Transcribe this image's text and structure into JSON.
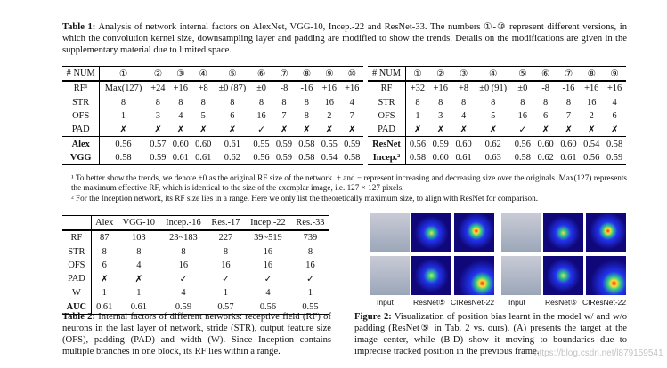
{
  "table1": {
    "caption_label": "Table 1:",
    "caption": "Analysis of network internal factors on AlexNet, VGG-10, Incep.-22 and ResNet-33. The numbers ①-⑩ represent different versions, in which the convolution kernel size, downsampling layer and padding are modified to show the trends. Details on the modifications are given in the supplementary material due to limited space.",
    "left": {
      "header": [
        "# NUM",
        "①",
        "②",
        "③",
        "④",
        "⑤",
        "⑥",
        "⑦",
        "⑧",
        "⑨",
        "⑩"
      ],
      "rows": [
        [
          "RF¹",
          "Max(127)",
          "+24",
          "+16",
          "+8",
          "±0 (87)",
          "±0",
          "-8",
          "-16",
          "+16",
          "+16"
        ],
        [
          "STR",
          "8",
          "8",
          "8",
          "8",
          "8",
          "8",
          "8",
          "8",
          "16",
          "4"
        ],
        [
          "OFS",
          "1",
          "3",
          "4",
          "5",
          "6",
          "16",
          "7",
          "8",
          "2",
          "7"
        ],
        [
          "PAD",
          "✗",
          "✗",
          "✗",
          "✗",
          "✗",
          "✓",
          "✗",
          "✗",
          "✗",
          "✗"
        ],
        [
          "Alex",
          "0.56",
          "0.57",
          "0.60",
          "0.60",
          "0.61",
          "0.55",
          "0.59",
          "0.58",
          "0.55",
          "0.59"
        ],
        [
          "VGG",
          "0.58",
          "0.59",
          "0.61",
          "0.61",
          "0.62",
          "0.56",
          "0.59",
          "0.58",
          "0.54",
          "0.58"
        ]
      ]
    },
    "right": {
      "header": [
        "# NUM",
        "①",
        "②",
        "③",
        "④",
        "⑤",
        "⑥",
        "⑦",
        "⑧",
        "⑨"
      ],
      "rows": [
        [
          "RF",
          "+32",
          "+16",
          "+8",
          "±0 (91)",
          "±0",
          "-8",
          "-16",
          "+16",
          "+16"
        ],
        [
          "STR",
          "8",
          "8",
          "8",
          "8",
          "8",
          "8",
          "8",
          "16",
          "4"
        ],
        [
          "OFS",
          "1",
          "3",
          "4",
          "5",
          "16",
          "6",
          "7",
          "2",
          "6"
        ],
        [
          "PAD",
          "✗",
          "✗",
          "✗",
          "✗",
          "✓",
          "✗",
          "✗",
          "✗",
          "✗"
        ],
        [
          "ResNet",
          "0.56",
          "0.59",
          "0.60",
          "0.62",
          "0.56",
          "0.60",
          "0.60",
          "0.54",
          "0.58"
        ],
        [
          "Incep.²",
          "0.58",
          "0.60",
          "0.61",
          "0.63",
          "0.58",
          "0.62",
          "0.61",
          "0.56",
          "0.59"
        ]
      ]
    },
    "footnotes": [
      "¹ To better show the trends, we denote ±0 as the original RF size of the network. + and − represent increasing and decreasing size over the originals. Max(127) represents the maximum effective RF, which is identical to the size of the exemplar image, i.e. 127 × 127 pixels.",
      "² For the Inception network, its RF size lies in a range. Here we only list the theoretically maximum size, to align with ResNet for comparison."
    ]
  },
  "table2": {
    "header": [
      "",
      "Alex",
      "VGG-10",
      "Incep.-16",
      "Res.-17",
      "Incep.-22",
      "Res.-33"
    ],
    "rows": [
      [
        "RF",
        "87",
        "103",
        "23~183",
        "227",
        "39~519",
        "739"
      ],
      [
        "STR",
        "8",
        "8",
        "8",
        "8",
        "16",
        "8"
      ],
      [
        "OFS",
        "6",
        "4",
        "16",
        "16",
        "16",
        "16"
      ],
      [
        "PAD",
        "✗",
        "✗",
        "✓",
        "✓",
        "✓",
        "✓"
      ],
      [
        "W",
        "1",
        "1",
        "4",
        "1",
        "4",
        "1"
      ],
      [
        "AUC",
        "0.61",
        "0.61",
        "0.59",
        "0.57",
        "0.56",
        "0.55"
      ]
    ],
    "caption_label": "Table 2:",
    "caption": "Internal factors of different networks: receptive field (RF) of neurons in the last layer of network, stride (STR), output feature size (OFS), padding (PAD) and width (W). Since Inception contains multiple branches in one block, its RF lies within a range."
  },
  "figure2": {
    "labels": [
      "Input",
      "ResNet⑤",
      "CIResNet-22",
      "Input",
      "ResNet⑤",
      "CIResNet-22"
    ],
    "caption_label": "Figure 2:",
    "caption": "Visualization of position bias learnt in the model w/ and w/o padding (ResNet⑤ in Tab. 2 vs. ours). (A) presents the target at the image center, while (B-D) show it moving to boundaries due to imprecise tracked position in the previous frame."
  },
  "watermark": "https://blog.csdn.net/l879159541"
}
